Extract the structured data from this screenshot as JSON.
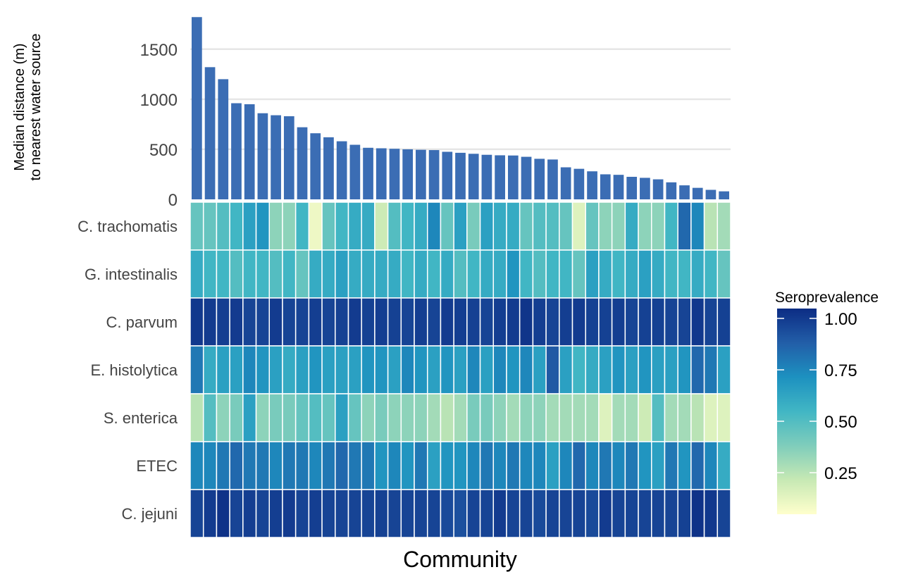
{
  "chart_data": {
    "type": "bar+heatmap",
    "bar_ylabel_line1": "Median distance (m)",
    "bar_ylabel_line2": "to nearest water source",
    "xlabel": "Community",
    "y_ticks": [
      0,
      500,
      1000,
      1500
    ],
    "ylim": [
      0,
      1850
    ],
    "grid": "horizontal",
    "bar_color": "#3b6db4",
    "bar_values": [
      1820,
      1320,
      1200,
      960,
      950,
      860,
      840,
      830,
      720,
      660,
      620,
      580,
      545,
      515,
      510,
      505,
      500,
      495,
      492,
      475,
      465,
      455,
      445,
      440,
      438,
      425,
      405,
      398,
      320,
      305,
      280,
      250,
      245,
      225,
      215,
      200,
      170,
      140,
      115,
      95,
      80
    ],
    "heatmap_rows": [
      {
        "name": "C. trachomatis",
        "values": [
          0.4,
          0.4,
          0.45,
          0.5,
          0.6,
          0.65,
          0.3,
          0.3,
          0.5,
          0.05,
          0.4,
          0.5,
          0.55,
          0.55,
          0.15,
          0.45,
          0.5,
          0.55,
          0.7,
          0.4,
          0.6,
          0.35,
          0.6,
          0.55,
          0.55,
          0.4,
          0.45,
          0.45,
          0.4,
          0.1,
          0.4,
          0.3,
          0.3,
          0.55,
          0.3,
          0.3,
          0.5,
          0.8,
          0.7,
          0.2,
          0.25
        ]
      },
      {
        "name": "G. intestinalis",
        "values": [
          0.55,
          0.5,
          0.5,
          0.45,
          0.5,
          0.5,
          0.45,
          0.5,
          0.4,
          0.55,
          0.55,
          0.6,
          0.55,
          0.55,
          0.55,
          0.55,
          0.5,
          0.55,
          0.5,
          0.55,
          0.45,
          0.5,
          0.55,
          0.55,
          0.65,
          0.5,
          0.45,
          0.5,
          0.5,
          0.4,
          0.6,
          0.55,
          0.5,
          0.55,
          0.6,
          0.55,
          0.5,
          0.5,
          0.55,
          0.5,
          0.4
        ]
      },
      {
        "name": "C. parvum",
        "values": [
          0.96,
          0.95,
          0.94,
          0.95,
          0.92,
          0.92,
          0.95,
          0.92,
          0.92,
          0.94,
          0.92,
          0.93,
          0.95,
          0.93,
          0.94,
          0.93,
          0.92,
          0.94,
          0.92,
          0.95,
          0.94,
          0.93,
          0.92,
          0.94,
          0.95,
          0.97,
          0.94,
          0.92,
          0.94,
          0.95,
          0.93,
          0.93,
          0.94,
          0.92,
          0.93,
          0.93,
          0.92,
          0.92,
          0.96,
          0.92,
          0.93
        ]
      },
      {
        "name": "E. histolytica",
        "values": [
          0.75,
          0.55,
          0.6,
          0.6,
          0.7,
          0.65,
          0.6,
          0.55,
          0.6,
          0.65,
          0.6,
          0.6,
          0.6,
          0.65,
          0.65,
          0.6,
          0.7,
          0.65,
          0.6,
          0.65,
          0.6,
          0.7,
          0.6,
          0.7,
          0.65,
          0.7,
          0.6,
          0.85,
          0.6,
          0.5,
          0.55,
          0.6,
          0.65,
          0.6,
          0.65,
          0.6,
          0.6,
          0.65,
          0.8,
          0.75,
          0.6
        ]
      },
      {
        "name": "S. enterica",
        "values": [
          0.2,
          0.45,
          0.3,
          0.35,
          0.6,
          0.3,
          0.35,
          0.35,
          0.4,
          0.45,
          0.4,
          0.6,
          0.4,
          0.3,
          0.35,
          0.3,
          0.3,
          0.3,
          0.25,
          0.2,
          0.25,
          0.35,
          0.35,
          0.3,
          0.25,
          0.3,
          0.3,
          0.25,
          0.25,
          0.25,
          0.25,
          0.1,
          0.25,
          0.25,
          0.15,
          0.45,
          0.25,
          0.25,
          0.2,
          0.1,
          0.1
        ]
      },
      {
        "name": "ETEC",
        "values": [
          0.7,
          0.7,
          0.75,
          0.8,
          0.75,
          0.75,
          0.7,
          0.75,
          0.75,
          0.7,
          0.75,
          0.8,
          0.75,
          0.75,
          0.65,
          0.7,
          0.65,
          0.75,
          0.6,
          0.65,
          0.65,
          0.7,
          0.75,
          0.7,
          0.75,
          0.7,
          0.7,
          0.6,
          0.7,
          0.8,
          0.7,
          0.75,
          0.7,
          0.75,
          0.65,
          0.6,
          0.75,
          0.65,
          0.8,
          0.7,
          0.55
        ]
      },
      {
        "name": "C. jejuni",
        "values": [
          0.92,
          0.95,
          0.98,
          0.92,
          0.94,
          0.92,
          0.94,
          0.95,
          0.92,
          0.94,
          0.92,
          0.92,
          0.92,
          0.92,
          0.93,
          0.92,
          0.92,
          0.92,
          0.92,
          0.9,
          0.88,
          0.92,
          0.92,
          0.95,
          0.92,
          0.92,
          0.9,
          0.92,
          0.92,
          0.92,
          0.9,
          0.95,
          0.92,
          0.92,
          0.92,
          0.92,
          0.92,
          0.93,
          0.98,
          0.96,
          0.92
        ]
      }
    ],
    "legend": {
      "title": "Seroprevalence",
      "ticks": [
        1.0,
        0.75,
        0.5,
        0.25
      ],
      "tick_labels": [
        "1.00",
        "0.75",
        "0.50",
        "0.25"
      ],
      "placement": "right",
      "color_stops": [
        "#ffffcc",
        "#c7e9b4",
        "#7fcdbb",
        "#41b6c4",
        "#1d91c0",
        "#225ea8",
        "#0c2c84"
      ]
    }
  }
}
